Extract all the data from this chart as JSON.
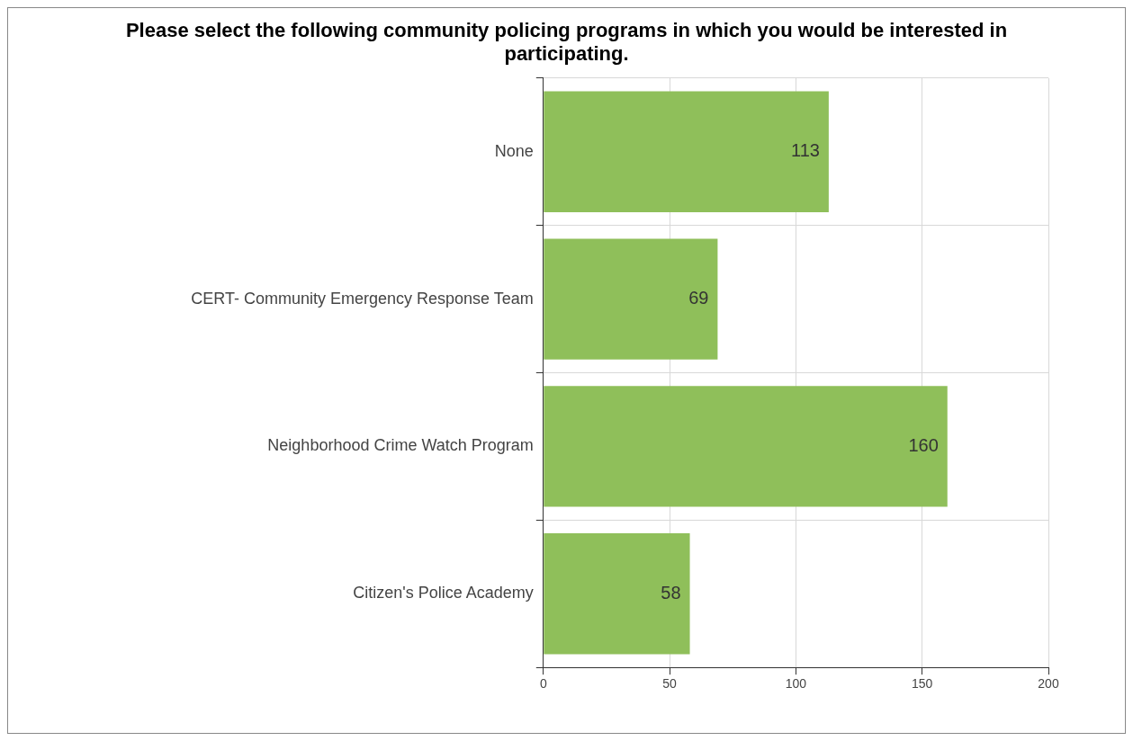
{
  "chart_data": {
    "type": "bar",
    "orientation": "horizontal",
    "title": "Please select the following community policing programs in which you would be interested in participating.",
    "categories": [
      "None",
      "CERT- Community Emergency Response Team",
      "Neighborhood Crime Watch Program",
      "Citizen's Police Academy"
    ],
    "values": [
      113,
      69,
      160,
      58
    ],
    "color": "#8fbf5a",
    "xlim": [
      0,
      200
    ],
    "xticks": [
      0,
      50,
      100,
      150,
      200
    ],
    "grid": true,
    "data_labels": true
  }
}
